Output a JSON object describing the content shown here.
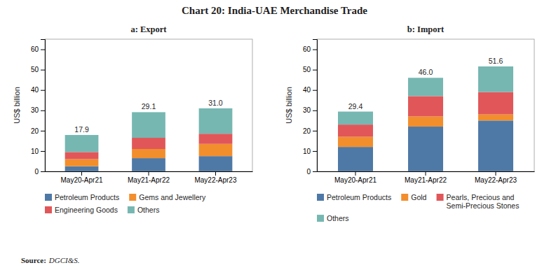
{
  "title": "Chart 20: India-UAE Merchandise Trade",
  "annotations": [
    "Source:",
    "DGCI&S."
  ],
  "chart_data": [
    {
      "type": "bar",
      "stacked": true,
      "subtitle": "a: Export",
      "categories": [
        "May20-Apr21",
        "May21-Apr22",
        "May22-Apr23"
      ],
      "series": [
        {
          "name": "Petroleum Products",
          "values": [
            2.5,
            6.5,
            7.5
          ]
        },
        {
          "name": "Gems and Jewellery",
          "values": [
            3.5,
            4.5,
            6.0
          ]
        },
        {
          "name": "Engineering Goods",
          "values": [
            3.5,
            5.5,
            5.0
          ]
        },
        {
          "name": "Others",
          "values": [
            8.4,
            12.6,
            12.5
          ]
        }
      ],
      "totals": [
        17.9,
        29.1,
        31.0
      ],
      "total_labels": [
        "17.9",
        "29.1",
        "31.0"
      ],
      "ylabel": "US$ billion",
      "ylim": [
        0,
        65
      ],
      "yticks": [
        0,
        10,
        20,
        30,
        40,
        50,
        60
      ]
    },
    {
      "type": "bar",
      "stacked": true,
      "subtitle": "b: Import",
      "categories": [
        "May20-Apr21",
        "May21-Apr22",
        "May22-Apr23"
      ],
      "series": [
        {
          "name": "Petroleum Products",
          "values": [
            12.0,
            22.0,
            25.0
          ]
        },
        {
          "name": "Gold",
          "values": [
            5.0,
            5.0,
            3.0
          ]
        },
        {
          "name": "Pearls, Precious and\nSemi-Precious Stones",
          "values": [
            6.0,
            10.0,
            11.0
          ]
        },
        {
          "name": "Others",
          "values": [
            6.4,
            9.0,
            12.6
          ]
        }
      ],
      "totals": [
        29.4,
        46.0,
        51.6
      ],
      "total_labels": [
        "29.4",
        "46.0",
        "51.6"
      ],
      "ylabel": "US$ billion",
      "ylim": [
        0,
        65
      ],
      "yticks": [
        0,
        10,
        20,
        30,
        40,
        50,
        60
      ]
    }
  ]
}
